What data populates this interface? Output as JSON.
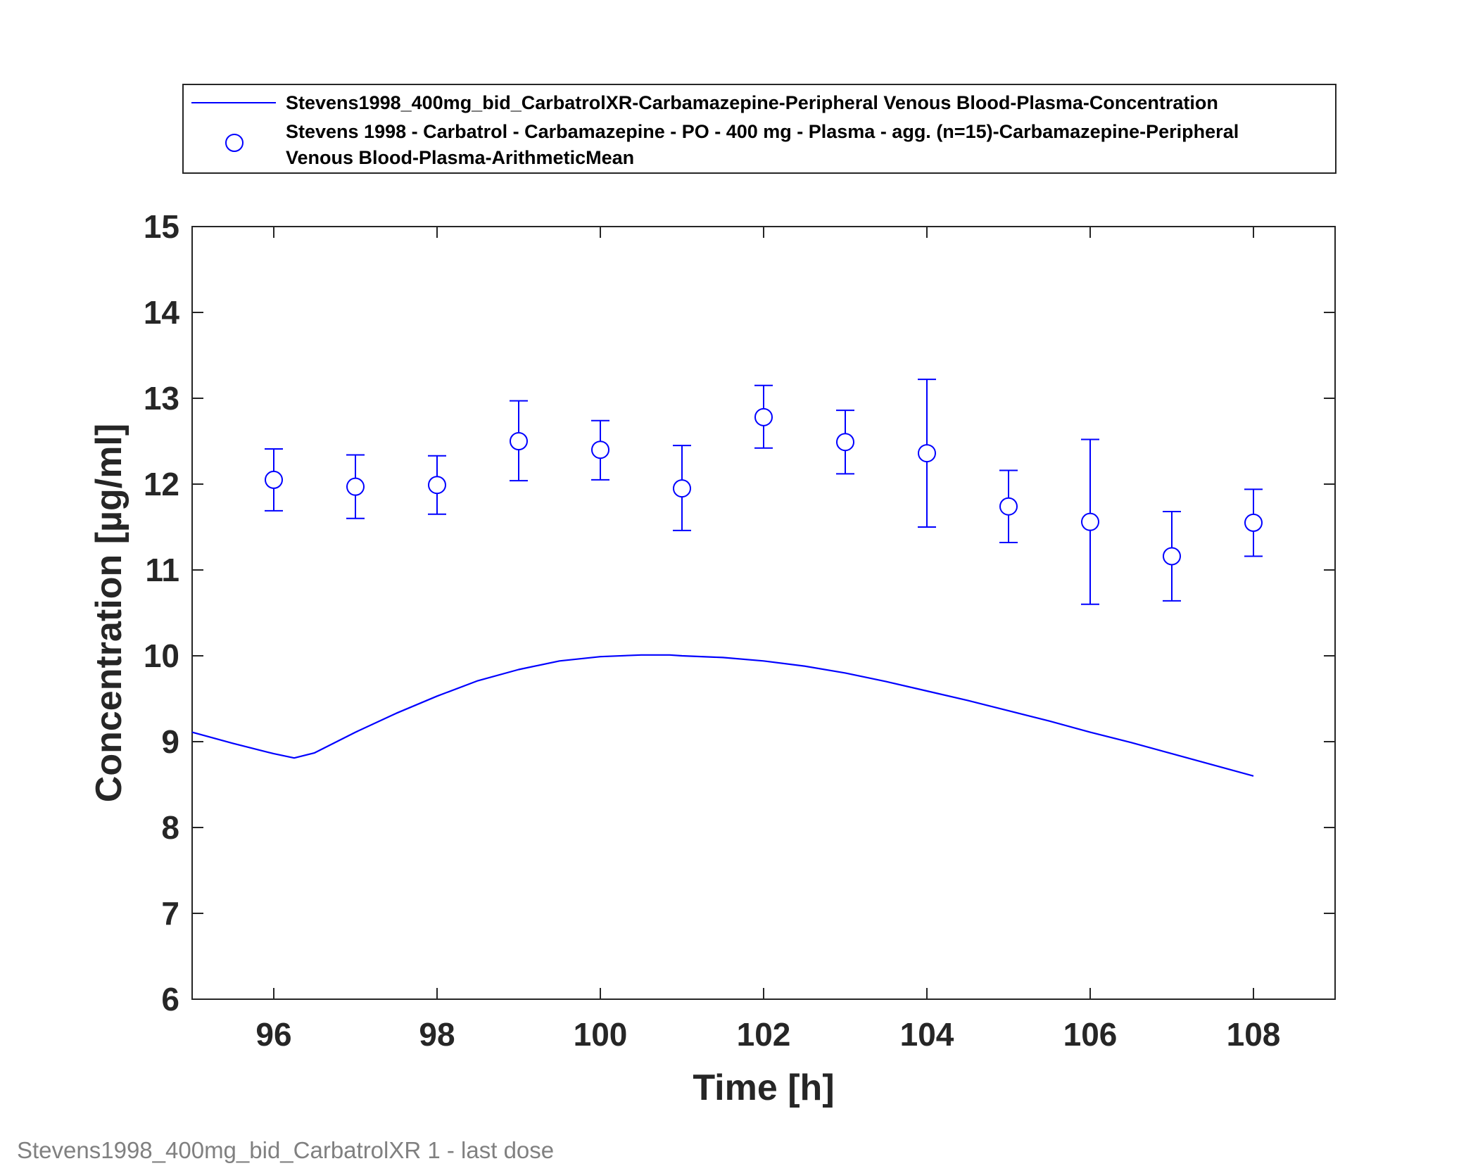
{
  "chart_data": {
    "type": "line",
    "xlabel": "Time [h]",
    "ylabel": "Concentration [µg/ml]",
    "xlim": [
      95,
      109
    ],
    "ylim": [
      6,
      15
    ],
    "xticks": [
      96,
      98,
      100,
      102,
      104,
      106,
      108
    ],
    "yticks": [
      6,
      7,
      8,
      9,
      10,
      11,
      12,
      13,
      14,
      15
    ],
    "grid": false,
    "legend_position": "top-outside",
    "series": [
      {
        "name": "Stevens1998_400mg_bid_CarbatrolXR-Carbamazepine-Peripheral Venous Blood-Plasma-Concentration",
        "type": "line",
        "color": "#0000ff",
        "x": [
          95,
          95.5,
          96,
          96.25,
          96.5,
          97,
          97.5,
          98,
          98.5,
          99,
          99.5,
          100,
          100.5,
          100.85,
          101,
          101.5,
          102,
          102.5,
          103,
          103.5,
          104,
          104.5,
          105,
          105.5,
          106,
          106.5,
          107,
          107.5,
          108
        ],
        "y": [
          9.11,
          8.98,
          8.86,
          8.81,
          8.87,
          9.11,
          9.33,
          9.53,
          9.71,
          9.84,
          9.94,
          9.99,
          10.01,
          10.01,
          10.0,
          9.98,
          9.94,
          9.88,
          9.8,
          9.7,
          9.59,
          9.48,
          9.36,
          9.24,
          9.11,
          8.99,
          8.86,
          8.73,
          8.6
        ]
      },
      {
        "name": "Stevens 1998 - Carbatrol - Carbamazepine - PO - 400 mg - Plasma - agg. (n=15)-Carbamazepine-Peripheral Venous Blood-Plasma-ArithmeticMean",
        "legend_lines": [
          "Stevens 1998 - Carbatrol - Carbamazepine - PO - 400 mg - Plasma - agg. (n=15)-Carbamazepine-Peripheral",
          "Venous Blood-Plasma-ArithmeticMean"
        ],
        "type": "scatter",
        "marker": "circle",
        "color": "#0000ff",
        "x": [
          96,
          97,
          98,
          99,
          100,
          101,
          102,
          103,
          104,
          105,
          106,
          107,
          108
        ],
        "y": [
          12.05,
          11.97,
          11.99,
          12.5,
          12.4,
          11.95,
          12.78,
          12.49,
          12.36,
          11.74,
          11.56,
          11.16,
          11.55
        ],
        "err_low": [
          11.69,
          11.6,
          11.65,
          12.04,
          12.05,
          11.46,
          12.42,
          12.12,
          11.5,
          11.32,
          10.6,
          10.64,
          11.16
        ],
        "err_high": [
          12.41,
          12.34,
          12.33,
          12.97,
          12.74,
          12.45,
          13.15,
          12.86,
          13.22,
          12.16,
          12.52,
          11.68,
          11.94
        ]
      }
    ]
  },
  "footer": {
    "text": "Stevens1998_400mg_bid_CarbatrolXR 1 - last dose"
  }
}
